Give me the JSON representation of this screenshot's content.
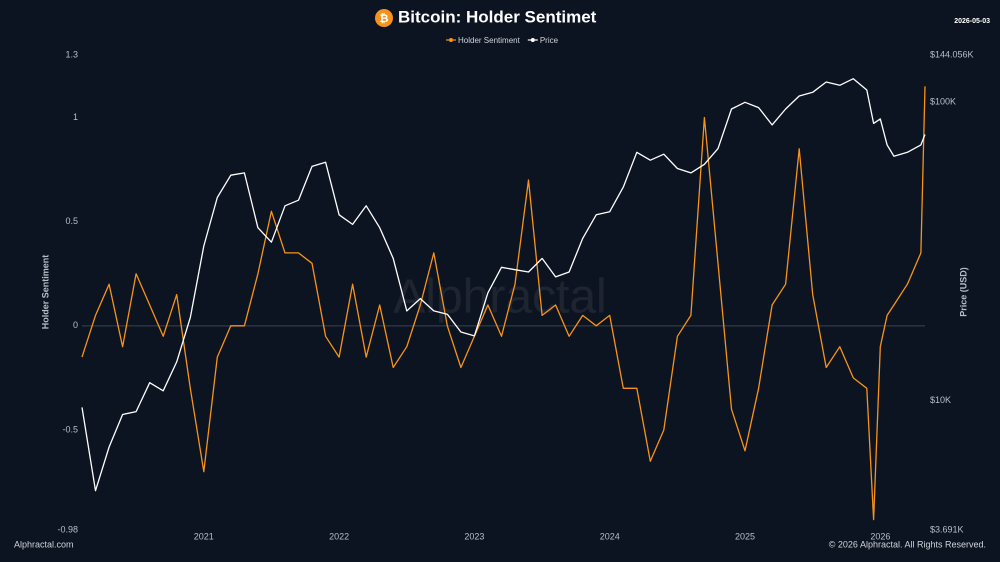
{
  "chart_data": {
    "type": "line",
    "title": "Bitcoin: Holder Sentimet",
    "logo": "₿",
    "date": "2026-05-03",
    "watermark": "Alphractal",
    "source": "Alphractal.com",
    "copyright": "© 2026 Alphractal. All Rights Reserved.",
    "ylabel": "Holder Sentiment",
    "y2label": "Price (USD)",
    "x": [
      2020.1,
      2020.2,
      2020.3,
      2020.4,
      2020.5,
      2020.6,
      2020.7,
      2020.8,
      2020.9,
      2021.0,
      2021.1,
      2021.2,
      2021.3,
      2021.4,
      2021.5,
      2021.6,
      2021.7,
      2021.8,
      2021.9,
      2022.0,
      2022.1,
      2022.2,
      2022.3,
      2022.4,
      2022.5,
      2022.6,
      2022.7,
      2022.8,
      2022.9,
      2023.0,
      2023.1,
      2023.2,
      2023.3,
      2023.4,
      2023.5,
      2023.6,
      2023.7,
      2023.8,
      2023.9,
      2024.0,
      2024.1,
      2024.2,
      2024.3,
      2024.4,
      2024.5,
      2024.6,
      2024.7,
      2024.8,
      2024.9,
      2025.0,
      2025.1,
      2025.2,
      2025.3,
      2025.4,
      2025.5,
      2025.6,
      2025.7,
      2025.8,
      2025.9,
      2025.95,
      2026.0,
      2026.05,
      2026.1,
      2026.2,
      2026.3,
      2026.33
    ],
    "xlim": [
      2020.1,
      2026.33
    ],
    "xticks": [
      2021,
      2022,
      2023,
      2024,
      2025,
      2026
    ],
    "ylim": [
      -0.98,
      1.3
    ],
    "yticks": [
      -0.98,
      -0.5,
      0,
      0.5,
      1,
      1.3
    ],
    "y2lim": [
      3691,
      144056
    ],
    "y2log": true,
    "y2ticks": [
      {
        "value": 3691,
        "label": "$3.691K"
      },
      {
        "value": 10000,
        "label": "$10K"
      },
      {
        "value": 100000,
        "label": "$100K"
      },
      {
        "value": 144056,
        "label": "$144.056K"
      }
    ],
    "zero_line": true,
    "series": [
      {
        "name": "Holder Sentiment",
        "color": "#f7931a",
        "axis": "y",
        "values": [
          -0.15,
          0.05,
          0.2,
          -0.1,
          0.25,
          0.1,
          -0.05,
          0.15,
          -0.3,
          -0.7,
          -0.15,
          0.0,
          0.0,
          0.25,
          0.55,
          0.35,
          0.35,
          0.3,
          -0.05,
          -0.15,
          0.2,
          -0.15,
          0.1,
          -0.2,
          -0.1,
          0.1,
          0.35,
          0.0,
          -0.2,
          -0.05,
          0.1,
          -0.05,
          0.2,
          0.7,
          0.05,
          0.1,
          -0.05,
          0.05,
          0.0,
          0.05,
          -0.3,
          -0.3,
          -0.65,
          -0.5,
          -0.05,
          0.05,
          1.0,
          0.3,
          -0.4,
          -0.6,
          -0.3,
          0.1,
          0.2,
          0.85,
          0.15,
          -0.2,
          -0.1,
          -0.25,
          -0.3,
          -0.93,
          -0.1,
          0.05,
          0.1,
          0.2,
          0.35,
          1.15
        ]
      },
      {
        "name": "Price",
        "color": "#ffffff",
        "axis": "y2",
        "values": [
          9500,
          5000,
          7000,
          9000,
          9200,
          11500,
          10800,
          13500,
          19000,
          33000,
          48000,
          57000,
          58000,
          38000,
          34000,
          45000,
          47000,
          61000,
          63000,
          42000,
          39000,
          45000,
          38000,
          30000,
          20000,
          22000,
          20000,
          19500,
          17000,
          16500,
          23000,
          28000,
          27500,
          27000,
          30000,
          26000,
          27000,
          35000,
          42000,
          43000,
          52000,
          68000,
          64000,
          67000,
          60000,
          58000,
          62000,
          70000,
          95000,
          100000,
          96000,
          84000,
          95000,
          105000,
          108000,
          117000,
          114000,
          120000,
          110000,
          85000,
          88000,
          72000,
          66000,
          68000,
          72000,
          78000
        ]
      }
    ]
  }
}
